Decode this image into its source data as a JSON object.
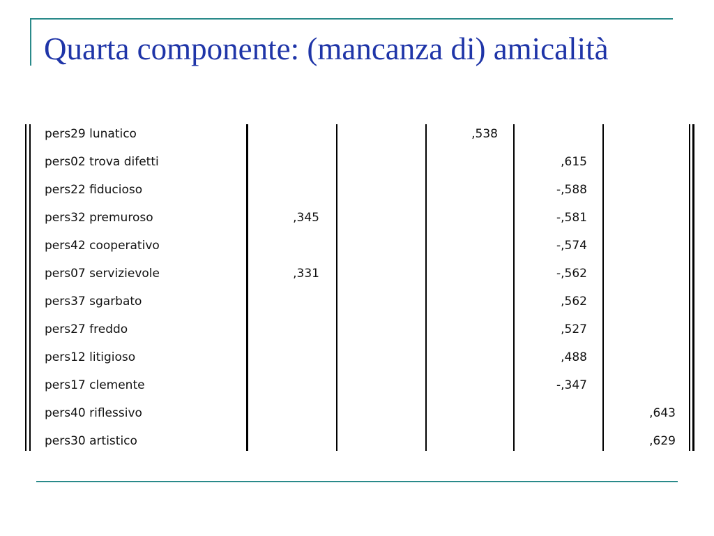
{
  "slide": {
    "title": "Quarta componente: (mancanza di) amicalità"
  },
  "table": {
    "rows": [
      {
        "label": "pers29 lunatico",
        "c1": "",
        "c2": "",
        "c3": ",538",
        "c4": "",
        "c5": ""
      },
      {
        "label": "pers02 trova difetti",
        "c1": "",
        "c2": "",
        "c3": "",
        "c4": ",615",
        "c5": ""
      },
      {
        "label": "pers22 fiducioso",
        "c1": "",
        "c2": "",
        "c3": "",
        "c4": "-,588",
        "c5": ""
      },
      {
        "label": "pers32 premuroso",
        "c1": ",345",
        "c2": "",
        "c3": "",
        "c4": "-,581",
        "c5": ""
      },
      {
        "label": "pers42 cooperativo",
        "c1": "",
        "c2": "",
        "c3": "",
        "c4": "-,574",
        "c5": ""
      },
      {
        "label": "pers07 servizievole",
        "c1": ",331",
        "c2": "",
        "c3": "",
        "c4": "-,562",
        "c5": ""
      },
      {
        "label": "pers37 sgarbato",
        "c1": "",
        "c2": "",
        "c3": "",
        "c4": ",562",
        "c5": ""
      },
      {
        "label": "pers27 freddo",
        "c1": "",
        "c2": "",
        "c3": "",
        "c4": ",527",
        "c5": ""
      },
      {
        "label": "pers12 litigioso",
        "c1": "",
        "c2": "",
        "c3": "",
        "c4": ",488",
        "c5": ""
      },
      {
        "label": "pers17 clemente",
        "c1": "",
        "c2": "",
        "c3": "",
        "c4": "-,347",
        "c5": ""
      },
      {
        "label": "pers40 riflessivo",
        "c1": "",
        "c2": "",
        "c3": "",
        "c4": "",
        "c5": ",643"
      },
      {
        "label": "pers30 artistico",
        "c1": "",
        "c2": "",
        "c3": "",
        "c4": "",
        "c5": ",629"
      }
    ]
  }
}
